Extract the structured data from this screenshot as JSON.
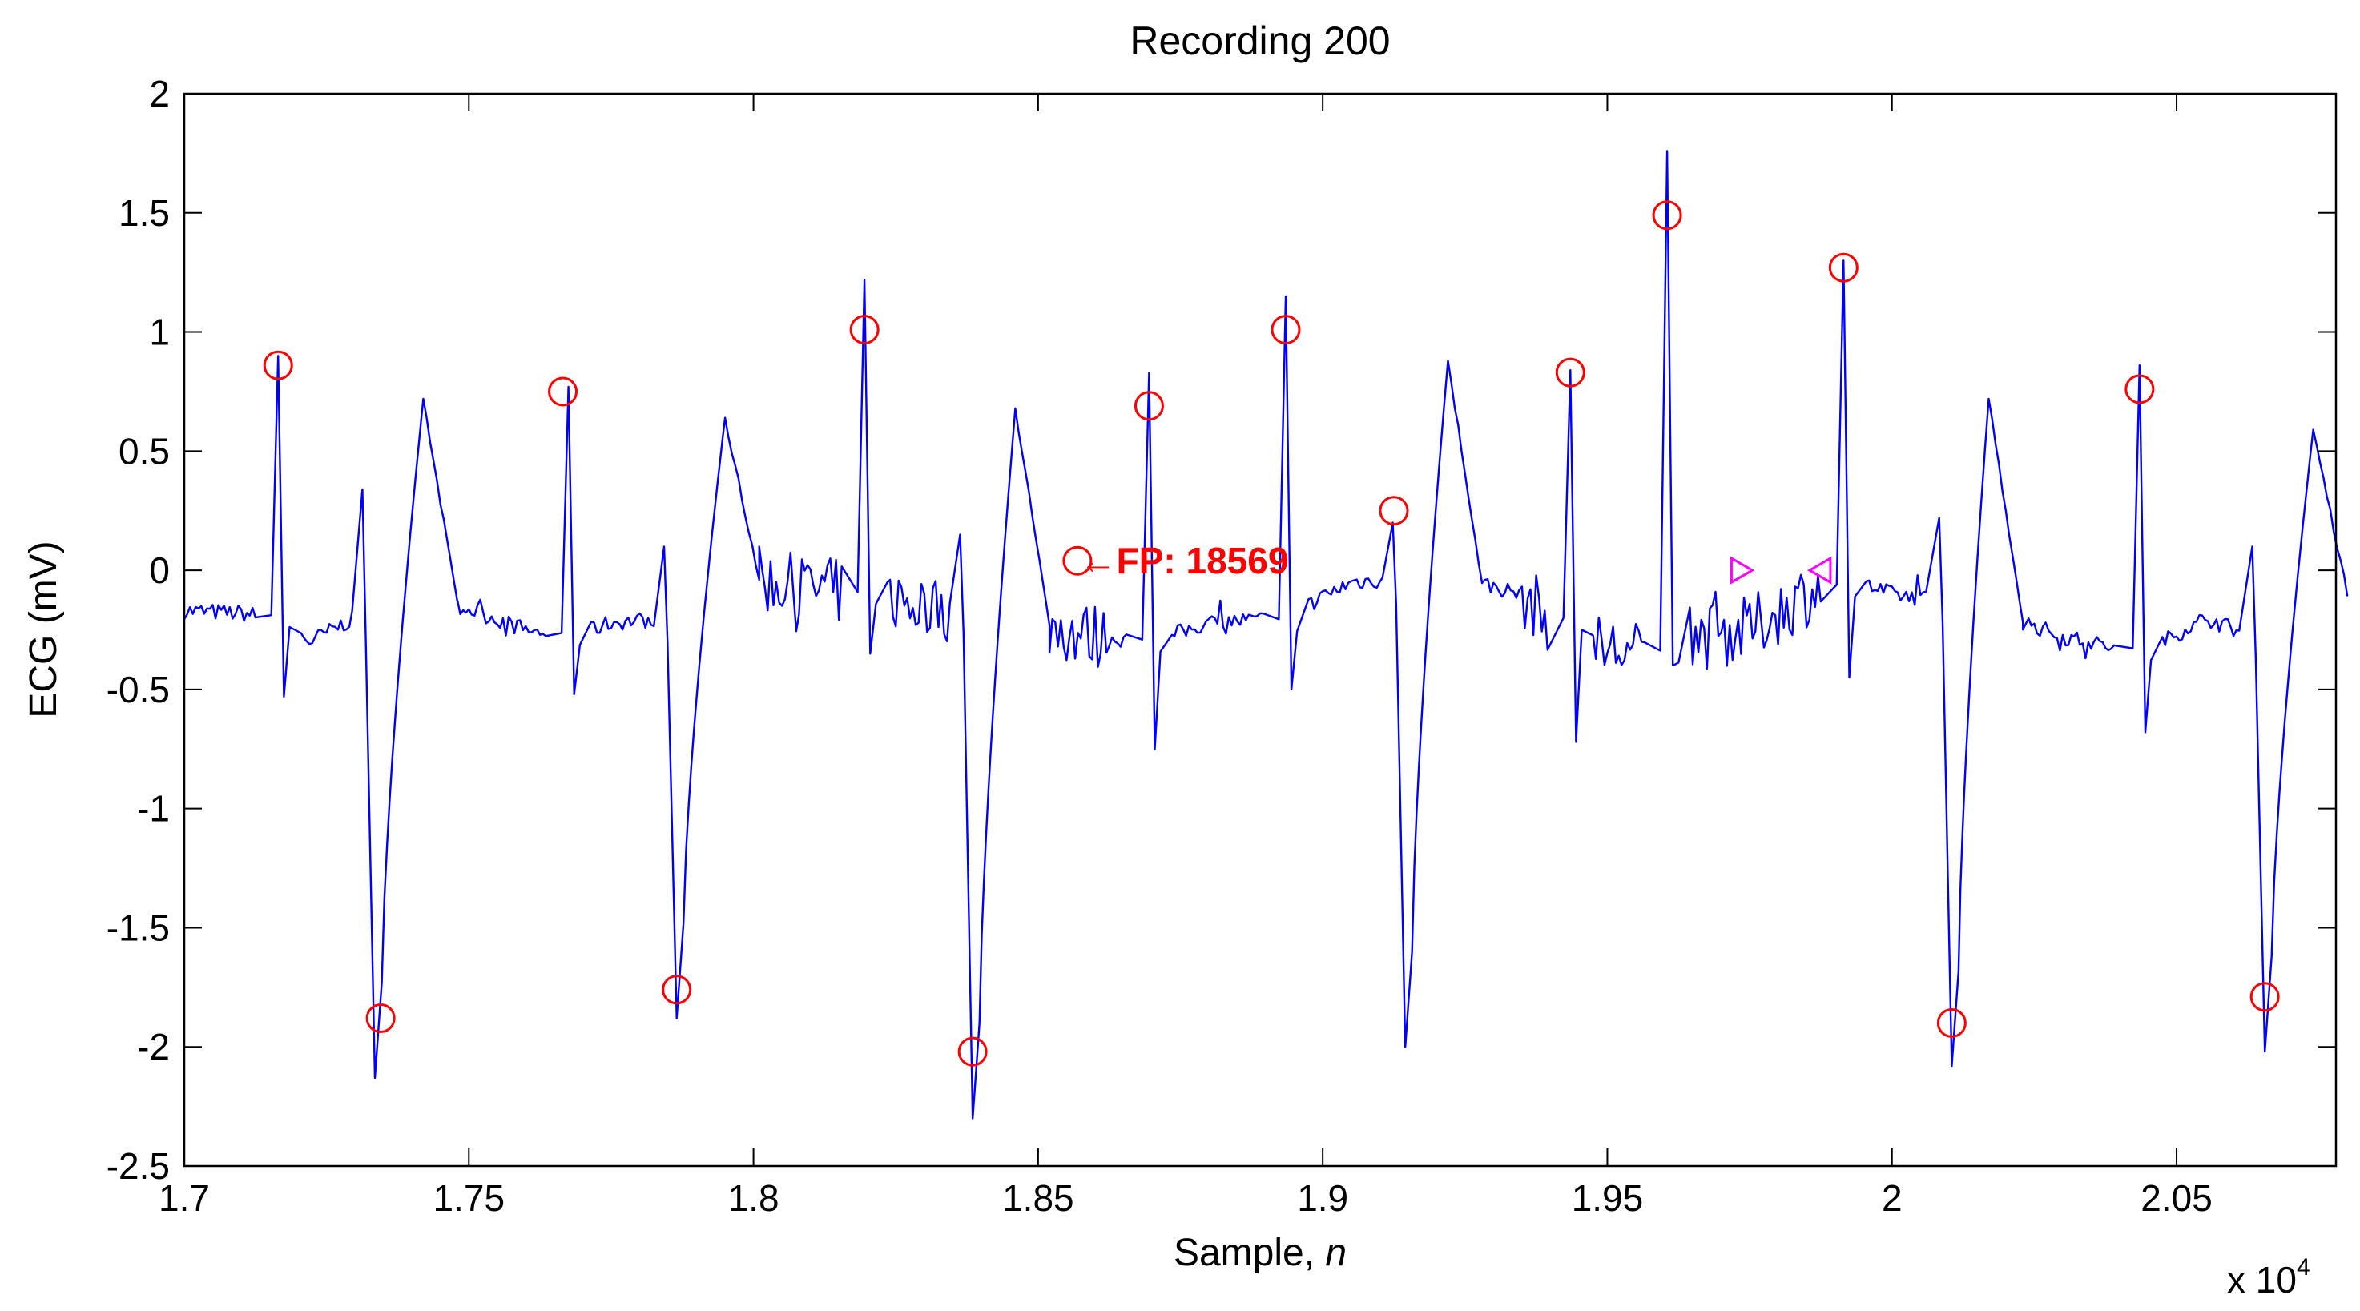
{
  "chart_data": {
    "type": "line",
    "title": "Recording 200",
    "xlabel": "Sample, ",
    "xlabel_italic": "n",
    "ylabel": "ECG (mV)",
    "x_multiplier": {
      "base": "x 10",
      "exponent": "4"
    },
    "xlim": [
      1.7,
      2.078
    ],
    "ylim": [
      -2.5,
      2
    ],
    "x_ticks": [
      1.7,
      1.75,
      1.8,
      1.85,
      1.9,
      1.95,
      2.0,
      2.05
    ],
    "x_tick_labels": [
      "1.7",
      "1.75",
      "1.8",
      "1.85",
      "1.9",
      "1.95",
      "2",
      "2.05"
    ],
    "y_ticks": [
      2,
      1.5,
      1,
      0.5,
      0,
      -0.5,
      -1,
      -1.5,
      -2,
      -2.5
    ],
    "y_tick_labels": [
      "2",
      "1.5",
      "1",
      "0.5",
      "0",
      "-0.5",
      "-1",
      "-1.5",
      "-2",
      "-2.5"
    ],
    "colors": {
      "signal": "#0000ff",
      "detections": "#ff0000",
      "onset": "#ff00ff",
      "axes": "#000000"
    },
    "baseline": {
      "x": [
        1.7,
        1.71,
        1.716,
        1.722,
        1.73,
        1.745,
        1.76,
        1.768,
        1.775,
        1.785,
        1.797,
        1.81,
        1.82,
        1.83,
        1.846,
        1.86,
        1.87,
        1.88,
        1.893,
        1.905,
        1.922,
        1.935,
        1.944,
        1.955,
        1.961,
        1.975,
        1.985,
        1.99,
        2.0,
        2.016,
        2.03,
        2.044,
        2.055,
        2.066,
        2.078
      ],
      "y": [
        -0.17,
        -0.18,
        -0.2,
        -0.3,
        -0.2,
        -0.12,
        -0.25,
        -0.28,
        -0.22,
        -0.2,
        -0.02,
        -0.08,
        -0.1,
        -0.15,
        -0.2,
        -0.28,
        -0.3,
        -0.22,
        -0.2,
        -0.05,
        -0.02,
        -0.1,
        -0.3,
        -0.35,
        -0.3,
        -0.25,
        -0.1,
        -0.02,
        -0.1,
        -0.15,
        -0.28,
        -0.35,
        -0.2,
        -0.3,
        -0.1
      ]
    },
    "r_peaks": [
      {
        "x": 1.7165,
        "y": 0.9,
        "min": -0.53
      },
      {
        "x": 1.7675,
        "y": 0.77,
        "min": -0.52
      },
      {
        "x": 1.8195,
        "y": 1.22,
        "min": -0.35
      },
      {
        "x": 1.8695,
        "y": 0.83,
        "min": -0.75
      },
      {
        "x": 1.8935,
        "y": 1.15,
        "min": -0.5
      },
      {
        "x": 1.9435,
        "y": 0.84,
        "min": -0.72
      },
      {
        "x": 1.9605,
        "y": 1.76,
        "min": -0.4
      },
      {
        "x": 1.9915,
        "y": 1.3,
        "min": -0.45
      },
      {
        "x": 2.0435,
        "y": 0.86,
        "min": -0.68
      }
    ],
    "pvcs": [
      {
        "x": 1.7335,
        "y": -2.13,
        "pre": 0.34,
        "t_peak": 0.72,
        "t_x": 1.742
      },
      {
        "x": 1.7865,
        "y": -1.88,
        "pre": 0.1,
        "t_peak": 0.64,
        "t_x": 1.795
      },
      {
        "x": 1.8385,
        "y": -2.3,
        "pre": 0.15,
        "t_peak": 0.68,
        "t_x": 1.846
      },
      {
        "x": 1.9145,
        "y": -2.0,
        "pre": 0.2,
        "t_peak": 0.88,
        "t_x": 1.922
      },
      {
        "x": 2.0105,
        "y": -2.08,
        "pre": 0.22,
        "t_peak": 0.72,
        "t_x": 2.017
      },
      {
        "x": 2.0655,
        "y": -2.02,
        "pre": 0.1,
        "t_peak": 0.59,
        "t_x": 2.074
      }
    ],
    "detections": [
      {
        "x": 1.7165,
        "y": 0.86
      },
      {
        "x": 1.7345,
        "y": -1.88
      },
      {
        "x": 1.7665,
        "y": 0.75
      },
      {
        "x": 1.7865,
        "y": -1.76
      },
      {
        "x": 1.8195,
        "y": 1.01
      },
      {
        "x": 1.8385,
        "y": -2.02
      },
      {
        "x": 1.8569,
        "y": 0.04
      },
      {
        "x": 1.8695,
        "y": 0.69
      },
      {
        "x": 1.8935,
        "y": 1.01
      },
      {
        "x": 1.9125,
        "y": 0.25
      },
      {
        "x": 1.9435,
        "y": 0.83
      },
      {
        "x": 1.9605,
        "y": 1.49
      },
      {
        "x": 1.9915,
        "y": 1.27
      },
      {
        "x": 2.0105,
        "y": -1.9
      },
      {
        "x": 2.0435,
        "y": 0.76
      },
      {
        "x": 2.0655,
        "y": -1.79
      }
    ],
    "markers_right_triangle": [
      {
        "x": 1.9735,
        "y": 0.0
      }
    ],
    "markers_left_triangle": [
      {
        "x": 1.9875,
        "y": 0.0
      }
    ],
    "annotations": [
      {
        "text": "←FP: 18569",
        "x": 1.857,
        "y": 0.04
      }
    ]
  }
}
